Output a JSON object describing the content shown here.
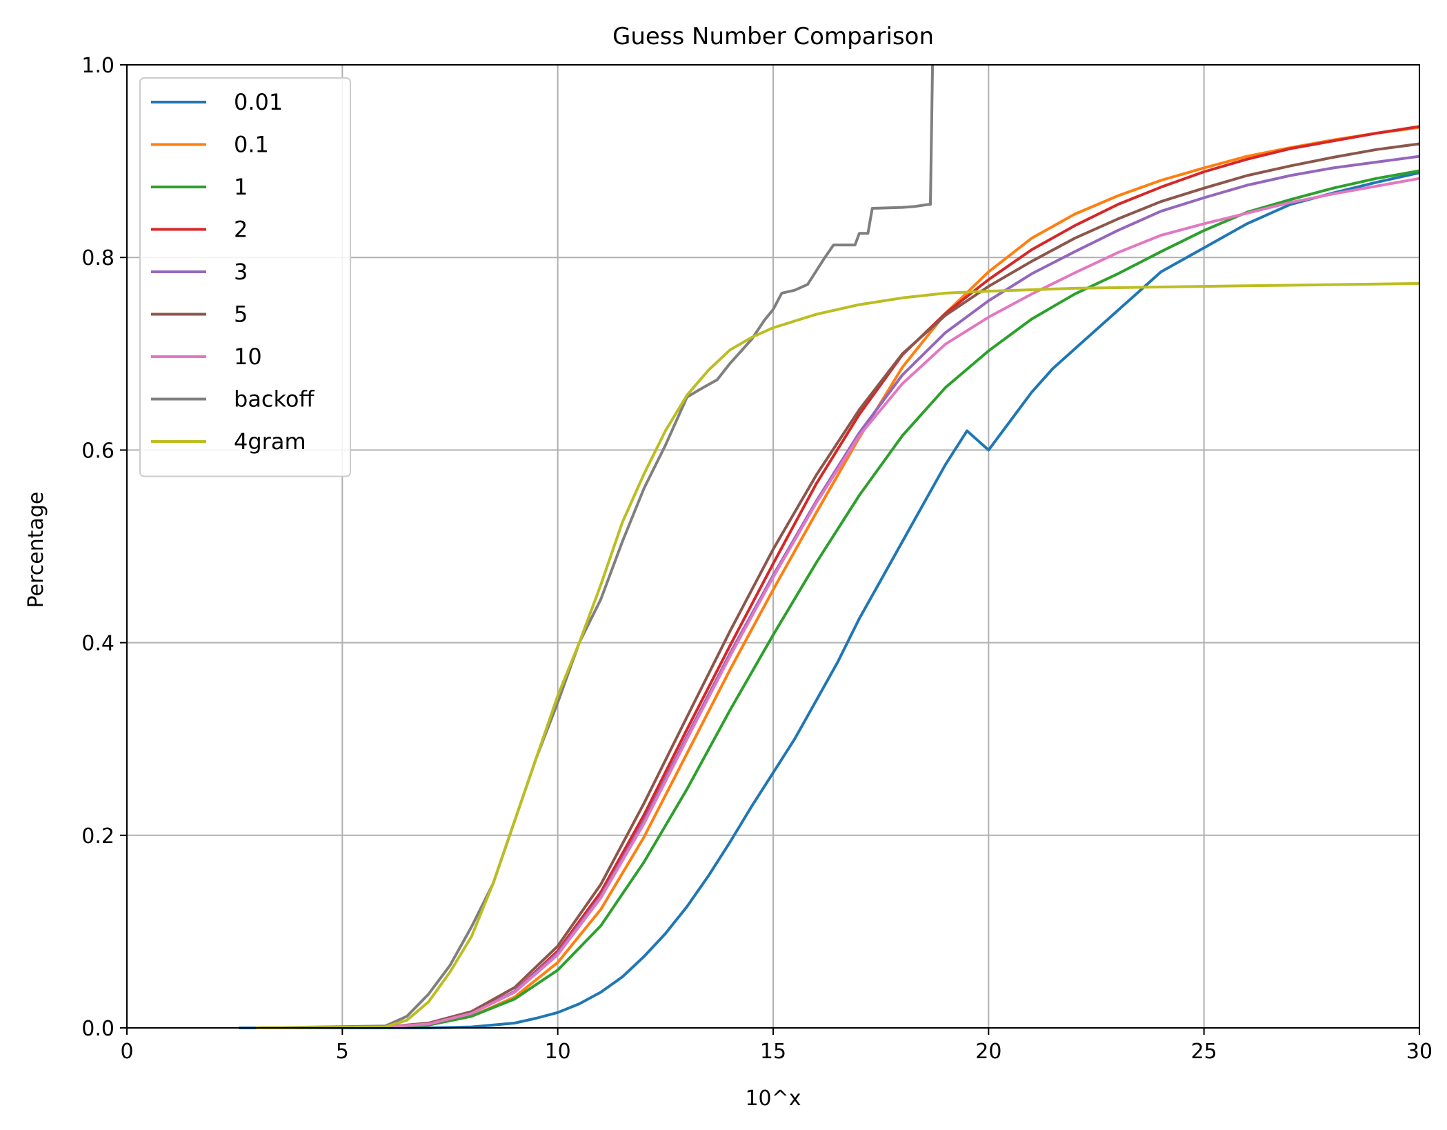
{
  "chart_data": {
    "type": "line",
    "title": "Guess Number Comparison",
    "xlabel": "10^x",
    "ylabel": "Percentage",
    "xlim": [
      0,
      30
    ],
    "ylim": [
      0,
      1.0
    ],
    "x_ticks": [
      0,
      5,
      10,
      15,
      20,
      25,
      30
    ],
    "x_tick_labels": [
      "0",
      "5",
      "10",
      "15",
      "20",
      "25",
      "30"
    ],
    "y_ticks": [
      0.0,
      0.2,
      0.4,
      0.6,
      0.8,
      1.0
    ],
    "y_tick_labels": [
      "0.0",
      "0.2",
      "0.4",
      "0.6",
      "0.8",
      "1.0"
    ],
    "grid": true,
    "legend_position": "upper-left",
    "series": [
      {
        "name": "0.01",
        "color": "#1f77b4",
        "points": [
          [
            2.6,
            0
          ],
          [
            7,
            0
          ],
          [
            8,
            0.001
          ],
          [
            9,
            0.005
          ],
          [
            9.5,
            0.01
          ],
          [
            10,
            0.016
          ],
          [
            10.5,
            0.025
          ],
          [
            11,
            0.037
          ],
          [
            11.5,
            0.053
          ],
          [
            12,
            0.074
          ],
          [
            12.5,
            0.098
          ],
          [
            13,
            0.126
          ],
          [
            13.5,
            0.158
          ],
          [
            14,
            0.193
          ],
          [
            14.5,
            0.23
          ],
          [
            15,
            0.265
          ],
          [
            15.5,
            0.3
          ],
          [
            16,
            0.34
          ],
          [
            16.5,
            0.38
          ],
          [
            17,
            0.425
          ],
          [
            17.5,
            0.465
          ],
          [
            18,
            0.505
          ],
          [
            18.5,
            0.545
          ],
          [
            19,
            0.585
          ],
          [
            19.5,
            0.62
          ],
          [
            20,
            0.6
          ],
          [
            20.5,
            0.63
          ],
          [
            21,
            0.66
          ],
          [
            21.5,
            0.685
          ],
          [
            22,
            0.705
          ],
          [
            22.5,
            0.725
          ],
          [
            23,
            0.745
          ],
          [
            23.5,
            0.765
          ],
          [
            24,
            0.785
          ],
          [
            25,
            0.81
          ],
          [
            26,
            0.835
          ],
          [
            27,
            0.855
          ],
          [
            28,
            0.867
          ],
          [
            29,
            0.878
          ],
          [
            30,
            0.888
          ]
        ]
      },
      {
        "name": "0.1",
        "color": "#ff7f0e",
        "points": [
          [
            3,
            0
          ],
          [
            6,
            0.001
          ],
          [
            7,
            0.003
          ],
          [
            8,
            0.012
          ],
          [
            9,
            0.032
          ],
          [
            10,
            0.068
          ],
          [
            11,
            0.123
          ],
          [
            12,
            0.198
          ],
          [
            13,
            0.285
          ],
          [
            14,
            0.372
          ],
          [
            15,
            0.455
          ],
          [
            16,
            0.535
          ],
          [
            17,
            0.613
          ],
          [
            18,
            0.686
          ],
          [
            19,
            0.742
          ],
          [
            20,
            0.785
          ],
          [
            21,
            0.82
          ],
          [
            22,
            0.845
          ],
          [
            23,
            0.864
          ],
          [
            24,
            0.88
          ],
          [
            25,
            0.893
          ],
          [
            26,
            0.905
          ],
          [
            27,
            0.914
          ],
          [
            28,
            0.922
          ],
          [
            29,
            0.929
          ],
          [
            30,
            0.935
          ]
        ]
      },
      {
        "name": "1",
        "color": "#2ca02c",
        "points": [
          [
            3,
            0
          ],
          [
            6,
            0.001
          ],
          [
            7,
            0.003
          ],
          [
            8,
            0.012
          ],
          [
            9,
            0.03
          ],
          [
            10,
            0.06
          ],
          [
            11,
            0.106
          ],
          [
            12,
            0.172
          ],
          [
            13,
            0.248
          ],
          [
            14,
            0.33
          ],
          [
            15,
            0.408
          ],
          [
            16,
            0.483
          ],
          [
            17,
            0.553
          ],
          [
            18,
            0.615
          ],
          [
            19,
            0.665
          ],
          [
            20,
            0.703
          ],
          [
            21,
            0.736
          ],
          [
            22,
            0.762
          ],
          [
            23,
            0.783
          ],
          [
            24,
            0.806
          ],
          [
            25,
            0.828
          ],
          [
            26,
            0.847
          ],
          [
            27,
            0.86
          ],
          [
            28,
            0.872
          ],
          [
            29,
            0.882
          ],
          [
            30,
            0.89
          ]
        ]
      },
      {
        "name": "2",
        "color": "#d62728",
        "points": [
          [
            3,
            0
          ],
          [
            6,
            0.001
          ],
          [
            7,
            0.004
          ],
          [
            8,
            0.015
          ],
          [
            9,
            0.038
          ],
          [
            10,
            0.08
          ],
          [
            11,
            0.141
          ],
          [
            12,
            0.221
          ],
          [
            13,
            0.31
          ],
          [
            14,
            0.397
          ],
          [
            15,
            0.482
          ],
          [
            16,
            0.565
          ],
          [
            17,
            0.637
          ],
          [
            18,
            0.699
          ],
          [
            19,
            0.742
          ],
          [
            20,
            0.777
          ],
          [
            21,
            0.808
          ],
          [
            22,
            0.833
          ],
          [
            23,
            0.855
          ],
          [
            24,
            0.873
          ],
          [
            25,
            0.889
          ],
          [
            26,
            0.902
          ],
          [
            27,
            0.913
          ],
          [
            28,
            0.921
          ],
          [
            29,
            0.929
          ],
          [
            30,
            0.936
          ]
        ]
      },
      {
        "name": "3",
        "color": "#9467bd",
        "points": [
          [
            3,
            0
          ],
          [
            6,
            0.001
          ],
          [
            7,
            0.004
          ],
          [
            8,
            0.015
          ],
          [
            9,
            0.038
          ],
          [
            10,
            0.078
          ],
          [
            11,
            0.137
          ],
          [
            12,
            0.215
          ],
          [
            13,
            0.303
          ],
          [
            14,
            0.389
          ],
          [
            15,
            0.47
          ],
          [
            16,
            0.547
          ],
          [
            17,
            0.618
          ],
          [
            18,
            0.678
          ],
          [
            19,
            0.722
          ],
          [
            20,
            0.755
          ],
          [
            21,
            0.783
          ],
          [
            22,
            0.806
          ],
          [
            23,
            0.828
          ],
          [
            24,
            0.848
          ],
          [
            25,
            0.862
          ],
          [
            26,
            0.875
          ],
          [
            27,
            0.885
          ],
          [
            28,
            0.893
          ],
          [
            29,
            0.899
          ],
          [
            30,
            0.905
          ]
        ]
      },
      {
        "name": "5",
        "color": "#8c564b",
        "points": [
          [
            3,
            0
          ],
          [
            6,
            0.001
          ],
          [
            7,
            0.005
          ],
          [
            8,
            0.017
          ],
          [
            9,
            0.042
          ],
          [
            10,
            0.085
          ],
          [
            11,
            0.149
          ],
          [
            12,
            0.233
          ],
          [
            13,
            0.323
          ],
          [
            14,
            0.412
          ],
          [
            15,
            0.497
          ],
          [
            16,
            0.574
          ],
          [
            17,
            0.642
          ],
          [
            18,
            0.7
          ],
          [
            19,
            0.74
          ],
          [
            20,
            0.77
          ],
          [
            21,
            0.796
          ],
          [
            22,
            0.82
          ],
          [
            23,
            0.84
          ],
          [
            24,
            0.858
          ],
          [
            25,
            0.872
          ],
          [
            26,
            0.885
          ],
          [
            27,
            0.895
          ],
          [
            28,
            0.904
          ],
          [
            29,
            0.912
          ],
          [
            30,
            0.918
          ]
        ]
      },
      {
        "name": "10",
        "color": "#e377c2",
        "points": [
          [
            3,
            0
          ],
          [
            6,
            0.001
          ],
          [
            7,
            0.004
          ],
          [
            8,
            0.015
          ],
          [
            9,
            0.037
          ],
          [
            10,
            0.076
          ],
          [
            11,
            0.135
          ],
          [
            12,
            0.212
          ],
          [
            13,
            0.3
          ],
          [
            14,
            0.386
          ],
          [
            15,
            0.468
          ],
          [
            16,
            0.545
          ],
          [
            17,
            0.615
          ],
          [
            18,
            0.669
          ],
          [
            19,
            0.71
          ],
          [
            20,
            0.738
          ],
          [
            21,
            0.762
          ],
          [
            22,
            0.784
          ],
          [
            23,
            0.805
          ],
          [
            24,
            0.823
          ],
          [
            25,
            0.835
          ],
          [
            26,
            0.846
          ],
          [
            27,
            0.857
          ],
          [
            28,
            0.866
          ],
          [
            29,
            0.874
          ],
          [
            30,
            0.882
          ]
        ]
      },
      {
        "name": "backoff",
        "color": "#7f7f7f",
        "points": [
          [
            3,
            0
          ],
          [
            6,
            0.002
          ],
          [
            6.5,
            0.012
          ],
          [
            7,
            0.035
          ],
          [
            7.5,
            0.065
          ],
          [
            8,
            0.105
          ],
          [
            8.5,
            0.15
          ],
          [
            9,
            0.215
          ],
          [
            9.5,
            0.28
          ],
          [
            10,
            0.338
          ],
          [
            10.5,
            0.4
          ],
          [
            11,
            0.445
          ],
          [
            11.5,
            0.505
          ],
          [
            12,
            0.56
          ],
          [
            12.5,
            0.605
          ],
          [
            13,
            0.655
          ],
          [
            13.3,
            0.663
          ],
          [
            13.7,
            0.673
          ],
          [
            14,
            0.69
          ],
          [
            14.5,
            0.715
          ],
          [
            14.8,
            0.735
          ],
          [
            15,
            0.746
          ],
          [
            15.2,
            0.763
          ],
          [
            15.5,
            0.766
          ],
          [
            15.8,
            0.772
          ],
          [
            16,
            0.786
          ],
          [
            16.2,
            0.8
          ],
          [
            16.4,
            0.813
          ],
          [
            16.9,
            0.813
          ],
          [
            17,
            0.825
          ],
          [
            17.2,
            0.825
          ],
          [
            17.3,
            0.851
          ],
          [
            18,
            0.852
          ],
          [
            18.3,
            0.853
          ],
          [
            18.6,
            0.855
          ],
          [
            18.65,
            0.855
          ],
          [
            18.7,
            1.0
          ]
        ]
      },
      {
        "name": "4gram",
        "color": "#bcbd22",
        "points": [
          [
            3,
            0
          ],
          [
            6,
            0.001
          ],
          [
            6.5,
            0.008
          ],
          [
            7,
            0.027
          ],
          [
            7.5,
            0.058
          ],
          [
            8,
            0.095
          ],
          [
            8.5,
            0.15
          ],
          [
            9,
            0.215
          ],
          [
            9.5,
            0.28
          ],
          [
            10,
            0.345
          ],
          [
            10.5,
            0.4
          ],
          [
            11,
            0.46
          ],
          [
            11.5,
            0.525
          ],
          [
            12,
            0.575
          ],
          [
            12.5,
            0.62
          ],
          [
            13,
            0.657
          ],
          [
            13.5,
            0.683
          ],
          [
            14,
            0.704
          ],
          [
            14.5,
            0.717
          ],
          [
            15,
            0.727
          ],
          [
            16,
            0.741
          ],
          [
            17,
            0.751
          ],
          [
            18,
            0.758
          ],
          [
            19,
            0.763
          ],
          [
            20,
            0.765
          ],
          [
            22,
            0.768
          ],
          [
            25,
            0.77
          ],
          [
            30,
            0.773
          ]
        ]
      }
    ]
  }
}
